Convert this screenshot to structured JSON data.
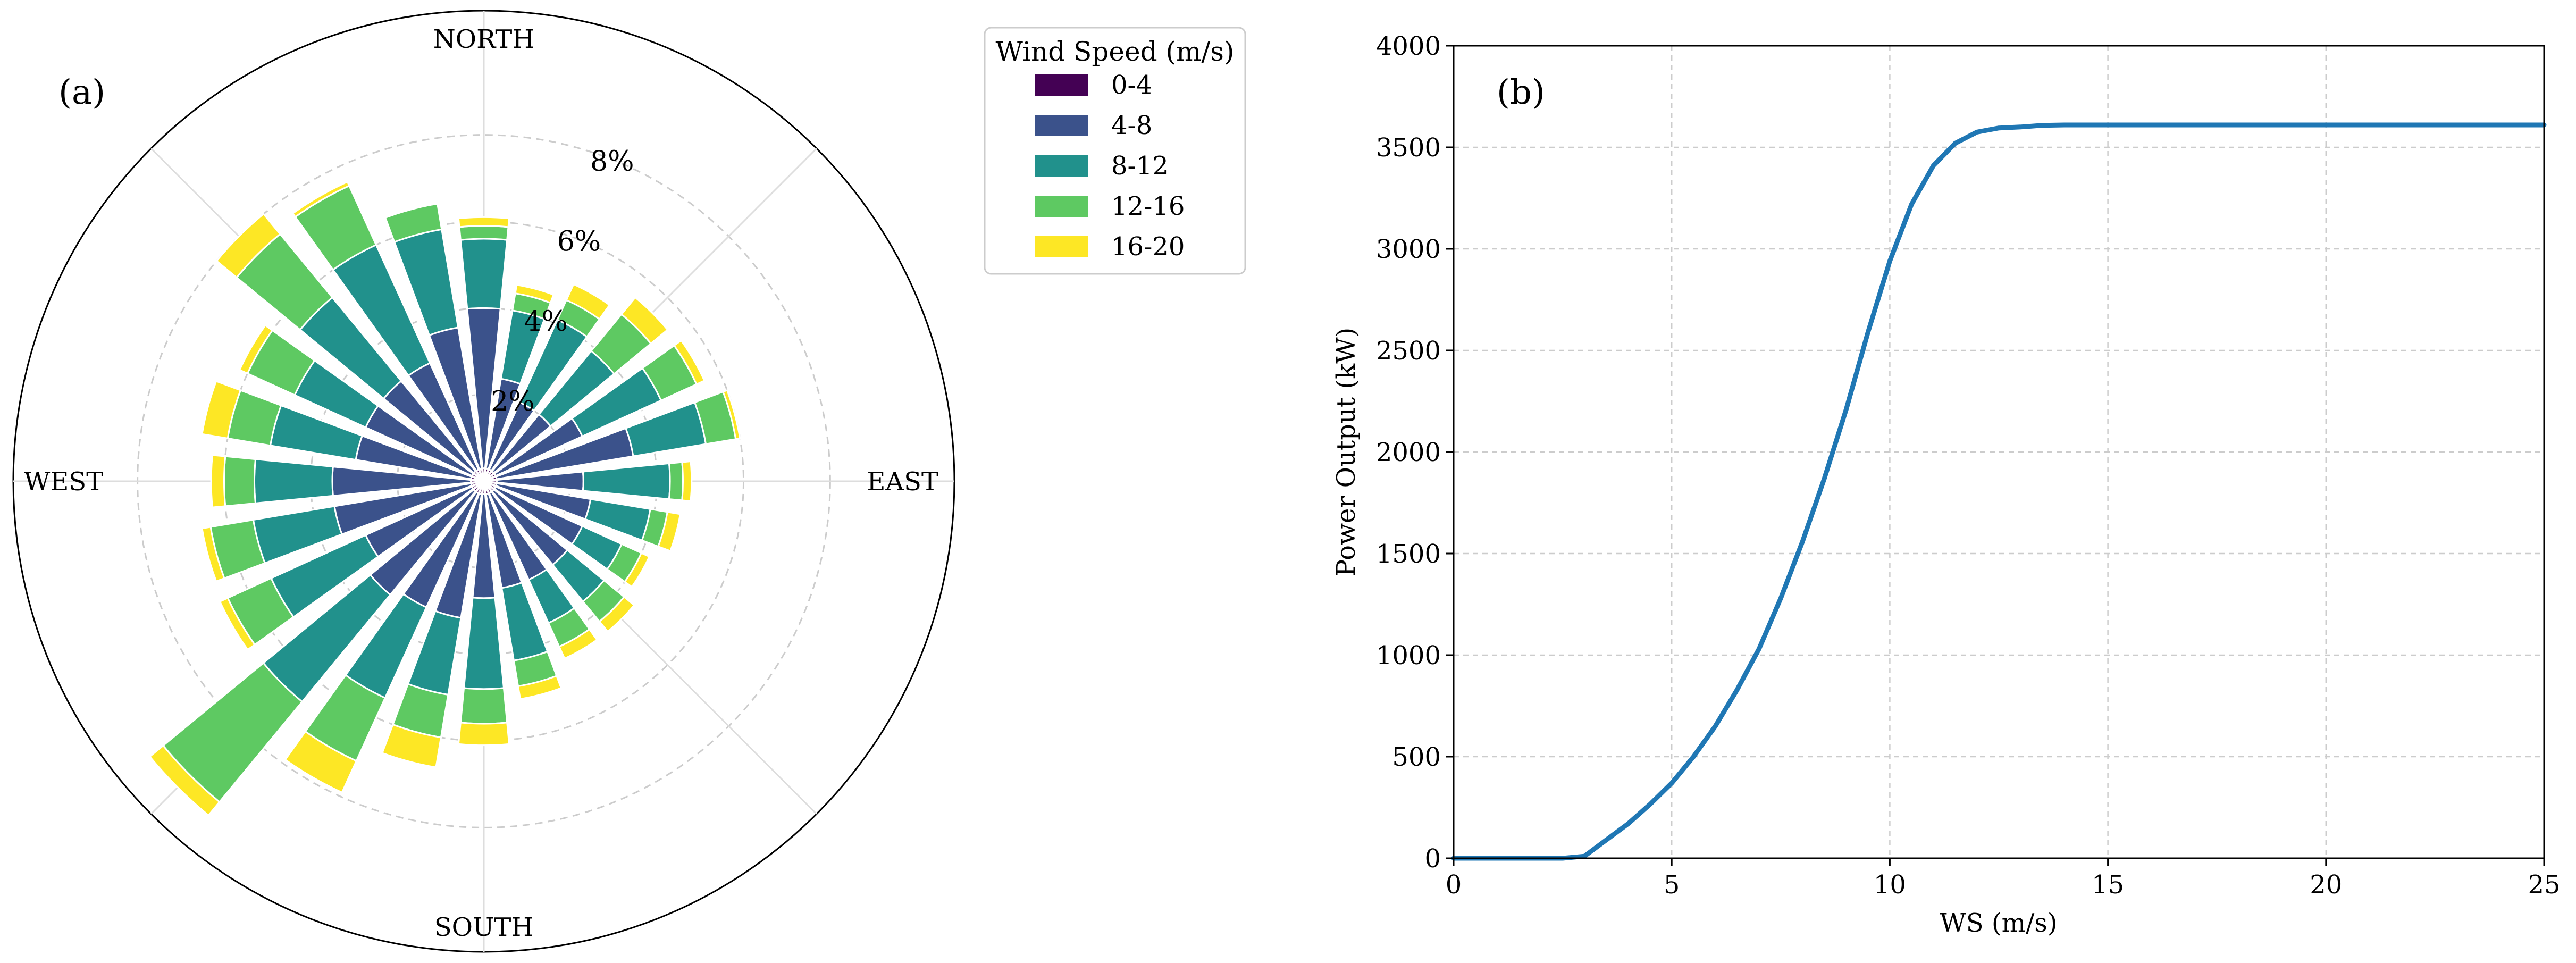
{
  "chart_data": [
    {
      "type": "wind_rose",
      "panel_label": "(a)",
      "direction_labels": [
        "NORTH",
        "EAST",
        "SOUTH",
        "WEST"
      ],
      "radial_tick_labels": [
        "2%",
        "4%",
        "6%",
        "8%"
      ],
      "radial_ticks": [
        2,
        4,
        6,
        8
      ],
      "r_max": 10,
      "bins": [
        {
          "name": "0-4",
          "color": "#440154"
        },
        {
          "name": "4-8",
          "color": "#3b528b"
        },
        {
          "name": "8-12",
          "color": "#21918c"
        },
        {
          "name": "12-16",
          "color": "#5ec962"
        },
        {
          "name": "16-20",
          "color": "#fde725"
        }
      ],
      "legend_title": "Wind Speed (m/s)",
      "legend_position": "upper-right outside",
      "sector_angles_deg": [
        0,
        15,
        30,
        45,
        60,
        75,
        90,
        105,
        120,
        135,
        150,
        165,
        180,
        195,
        210,
        225,
        240,
        255,
        270,
        285,
        300,
        315,
        330,
        345
      ],
      "cumulative_percent": [
        [
          0.3,
          4.0,
          5.6,
          5.9,
          6.1
        ],
        [
          0.3,
          2.4,
          4.0,
          4.4,
          4.6
        ],
        [
          0.3,
          2.0,
          4.1,
          4.6,
          5.0
        ],
        [
          0.3,
          2.0,
          3.9,
          5.0,
          5.5
        ],
        [
          0.3,
          2.5,
          4.5,
          5.4,
          5.6
        ],
        [
          0.3,
          3.5,
          5.2,
          5.9,
          6.0
        ],
        [
          0.3,
          2.3,
          4.3,
          4.6,
          4.8
        ],
        [
          0.3,
          2.5,
          3.9,
          4.3,
          4.6
        ],
        [
          0.3,
          2.5,
          3.5,
          4.0,
          4.2
        ],
        [
          0.3,
          2.5,
          3.6,
          4.2,
          4.5
        ],
        [
          0.3,
          2.5,
          3.6,
          4.2,
          4.5
        ],
        [
          0.3,
          2.5,
          4.2,
          4.8,
          5.1
        ],
        [
          0.3,
          2.7,
          4.8,
          5.6,
          6.1
        ],
        [
          0.3,
          3.2,
          5.0,
          6.0,
          6.7
        ],
        [
          0.3,
          3.2,
          5.5,
          7.1,
          7.9
        ],
        [
          0.3,
          3.4,
          6.6,
          9.6,
          10.0
        ],
        [
          0.3,
          3.0,
          5.4,
          6.5,
          6.7
        ],
        [
          0.3,
          3.5,
          5.4,
          6.4,
          6.6
        ],
        [
          0.3,
          3.5,
          5.3,
          6.0,
          6.3
        ],
        [
          0.3,
          3.0,
          5.0,
          6.0,
          6.6
        ],
        [
          0.3,
          3.0,
          4.8,
          6.0,
          6.2
        ],
        [
          0.3,
          3.0,
          5.5,
          7.4,
          8.0
        ],
        [
          0.3,
          3.0,
          6.0,
          7.5,
          7.6
        ],
        [
          0.3,
          3.6,
          5.9,
          6.5,
          6.5
        ]
      ]
    },
    {
      "type": "line",
      "panel_label": "(b)",
      "xlabel": "WS (m/s)",
      "ylabel": "Power Output (kW)",
      "xlim": [
        0,
        25
      ],
      "ylim": [
        0,
        4000
      ],
      "xticks": [
        0,
        5,
        10,
        15,
        20,
        25
      ],
      "yticks": [
        0,
        500,
        1000,
        1500,
        2000,
        2500,
        3000,
        3500,
        4000
      ],
      "grid": true,
      "line_color": "#1f77b4",
      "x": [
        0,
        1,
        2,
        2.5,
        3,
        3.5,
        4,
        4.5,
        5,
        5.5,
        6,
        6.5,
        7,
        7.5,
        8,
        8.5,
        9,
        9.5,
        10,
        10.5,
        11,
        11.5,
        12,
        12.5,
        13,
        13.5,
        14,
        15,
        20,
        25
      ],
      "y": [
        0,
        0,
        0,
        0,
        10,
        90,
        170,
        265,
        370,
        500,
        650,
        830,
        1030,
        1280,
        1560,
        1870,
        2210,
        2590,
        2940,
        3220,
        3410,
        3520,
        3575,
        3595,
        3600,
        3608,
        3610,
        3610,
        3610,
        3610
      ]
    }
  ]
}
